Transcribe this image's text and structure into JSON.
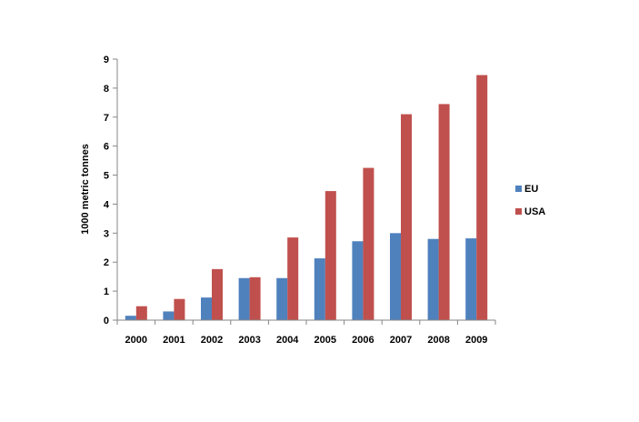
{
  "chart_data": {
    "type": "bar",
    "title": "",
    "xlabel": "",
    "ylabel": "1000 metric tonnes",
    "ylim": [
      0,
      9
    ],
    "yticks": [
      0,
      1,
      2,
      3,
      4,
      5,
      6,
      7,
      8,
      9
    ],
    "grid": false,
    "legend_position": "right",
    "categories": [
      "2000",
      "2001",
      "2002",
      "2003",
      "2004",
      "2005",
      "2006",
      "2007",
      "2008",
      "2009"
    ],
    "series": [
      {
        "name": "EU",
        "color": "#4F81BD",
        "values": [
          0.15,
          0.3,
          0.78,
          1.45,
          1.45,
          2.13,
          2.72,
          3.0,
          2.8,
          2.82
        ]
      },
      {
        "name": "USA",
        "color": "#C0504D",
        "values": [
          0.48,
          0.73,
          1.76,
          1.48,
          2.85,
          4.45,
          5.25,
          7.1,
          7.45,
          8.45
        ]
      }
    ]
  }
}
